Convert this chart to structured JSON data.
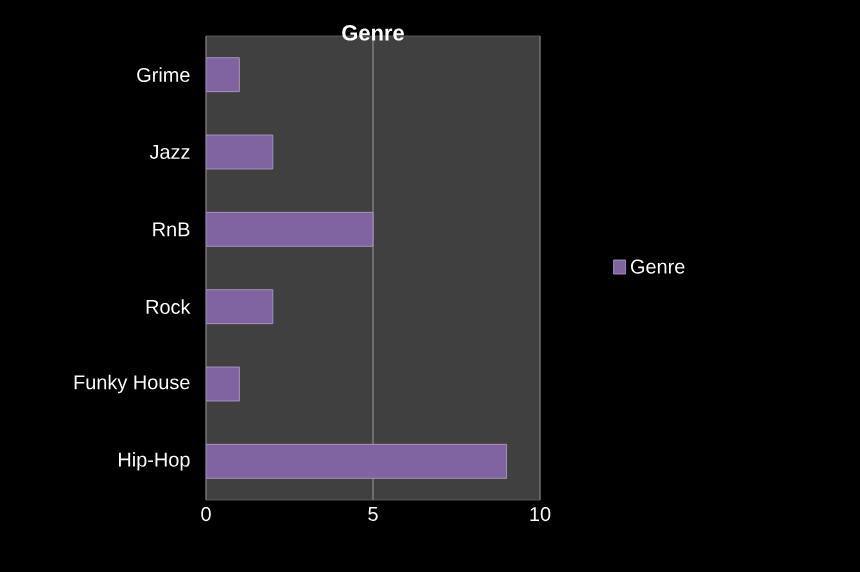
{
  "chart_data": {
    "type": "bar",
    "orientation": "horizontal",
    "title": "Genre",
    "categories": [
      "Grime",
      "Jazz",
      "RnB",
      "Rock",
      "Funky House",
      "Hip-Hop"
    ],
    "series": [
      {
        "name": "Genre",
        "color": "#8064a2",
        "values": [
          1,
          2,
          5,
          2,
          1,
          9
        ]
      }
    ],
    "xlim": [
      0,
      10
    ],
    "xticks": [
      0,
      5,
      10
    ],
    "grid": "x",
    "legend": "right"
  }
}
